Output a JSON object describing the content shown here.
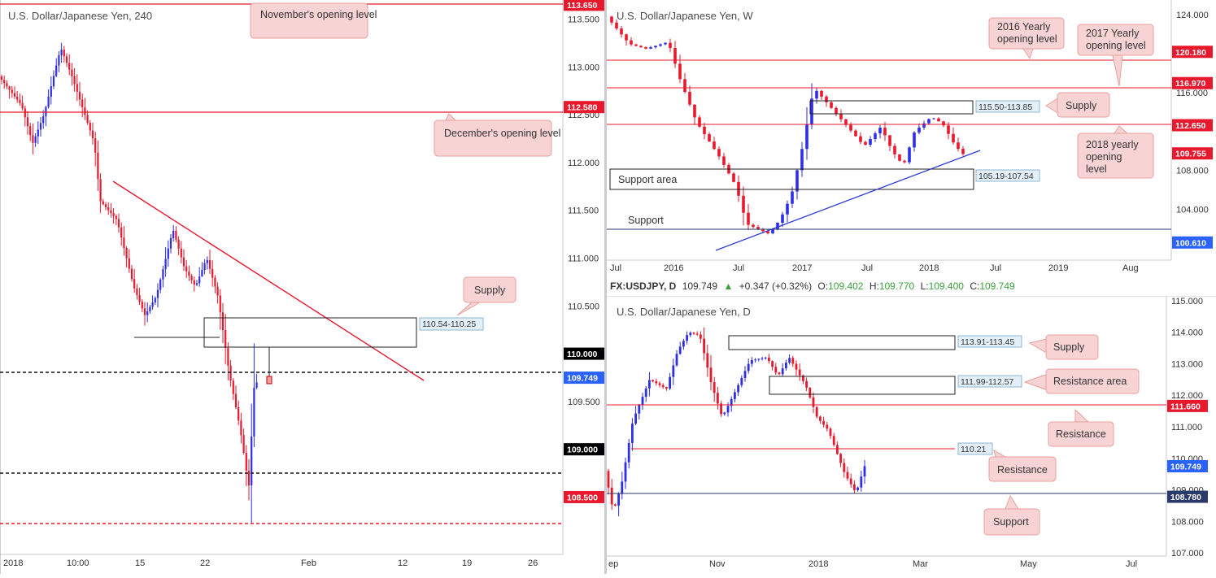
{
  "panels": {
    "h4": {
      "title": "U.S. Dollar/Japanese Yen, 240",
      "ylim": [
        107.9,
        113.7
      ],
      "price_ticks": [
        "113.500",
        "113.000",
        "112.500",
        "112.000",
        "111.500",
        "111.000",
        "110.500",
        "109.500"
      ],
      "price_tick_values": [
        113.5,
        113.0,
        112.5,
        112.0,
        111.5,
        111.0,
        110.5,
        109.5
      ],
      "time_ticks": [
        "2018",
        "10:00",
        "15",
        "22",
        "Feb",
        "12",
        "19",
        "26"
      ],
      "level_badges": [
        {
          "label": "113.650",
          "value": 113.65,
          "color": "#e8182d"
        },
        {
          "label": "112.580",
          "value": 112.58,
          "color": "#e8182d"
        },
        {
          "label": "110.000",
          "value": 110.0,
          "color": "#000000"
        },
        {
          "label": "109.749",
          "value": 109.749,
          "color": "#2962ff"
        },
        {
          "label": "109.000",
          "value": 109.0,
          "color": "#000000"
        },
        {
          "label": "108.500",
          "value": 108.5,
          "color": "#e8182d"
        }
      ],
      "zone_label": "110.54-110.25",
      "notes": {
        "november": "November's opening level",
        "december": "December's opening level",
        "supply": "Supply"
      }
    },
    "weekly": {
      "title": "U.S. Dollar/Japanese Yen, W",
      "ylim": [
        98.8,
        125.5
      ],
      "price_ticks": [
        "124.000",
        "116.000",
        "108.000",
        "104.000"
      ],
      "price_tick_values": [
        124,
        116,
        108,
        104
      ],
      "time_ticks": [
        "Jul",
        "2016",
        "Jul",
        "2017",
        "Jul",
        "2018",
        "Jul",
        "2019",
        "Aug"
      ],
      "level_badges": [
        {
          "label": "120.180",
          "value": 120.18,
          "color": "#e8182d"
        },
        {
          "label": "116.970",
          "value": 116.97,
          "color": "#e8182d"
        },
        {
          "label": "112.650",
          "value": 112.65,
          "color": "#e8182d"
        },
        {
          "label": "109.755",
          "value": 109.755,
          "color": "#e8182d"
        },
        {
          "label": "100.610",
          "value": 100.61,
          "color": "#2962ff"
        }
      ],
      "zones": [
        "115.50-113.85",
        "105.19-107.54"
      ],
      "notes": {
        "y2016": "2016 Yearly opening level",
        "y2017": "2017 Yearly opening level",
        "supply": "Supply",
        "y2018": "2018 yearly opening level",
        "support_area": "Support area",
        "support": "Support"
      }
    },
    "daily": {
      "header": {
        "symbol": "FX:USDJPY, D",
        "price": "109.749",
        "change": "+0.347 (+0.32%)",
        "o_label": "O:",
        "o": "109.402",
        "h_label": "H:",
        "h": "109.770",
        "l_label": "L:",
        "l": "109.400",
        "c_label": "C:",
        "c": "109.749"
      },
      "title": "U.S. Dollar/Japanese Yen, D",
      "ylim": [
        106.9,
        115.15
      ],
      "price_ticks": [
        "115.000",
        "114.000",
        "113.000",
        "112.000",
        "111.000",
        "110.000",
        "109.000",
        "108.000",
        "107.000"
      ],
      "price_tick_values": [
        115,
        114,
        113,
        112,
        111,
        110,
        109,
        108,
        107
      ],
      "time_ticks": [
        "ep",
        "Nov",
        "2018",
        "Mar",
        "May",
        "Jul"
      ],
      "level_badges": [
        {
          "label": "111.660",
          "value": 111.66,
          "color": "#e8182d"
        },
        {
          "label": "109.749",
          "value": 109.749,
          "color": "#2962ff"
        },
        {
          "label": "108.780",
          "value": 108.78,
          "color": "#2a3a6a"
        }
      ],
      "zones": [
        "113.91-113.45",
        "111.99-112.57",
        "110.21"
      ],
      "notes": {
        "supply": "Supply",
        "resistance_area": "Resistance area",
        "resistance_1": "Resistance",
        "resistance_2": "Resistance",
        "support": "Support"
      }
    }
  }
}
